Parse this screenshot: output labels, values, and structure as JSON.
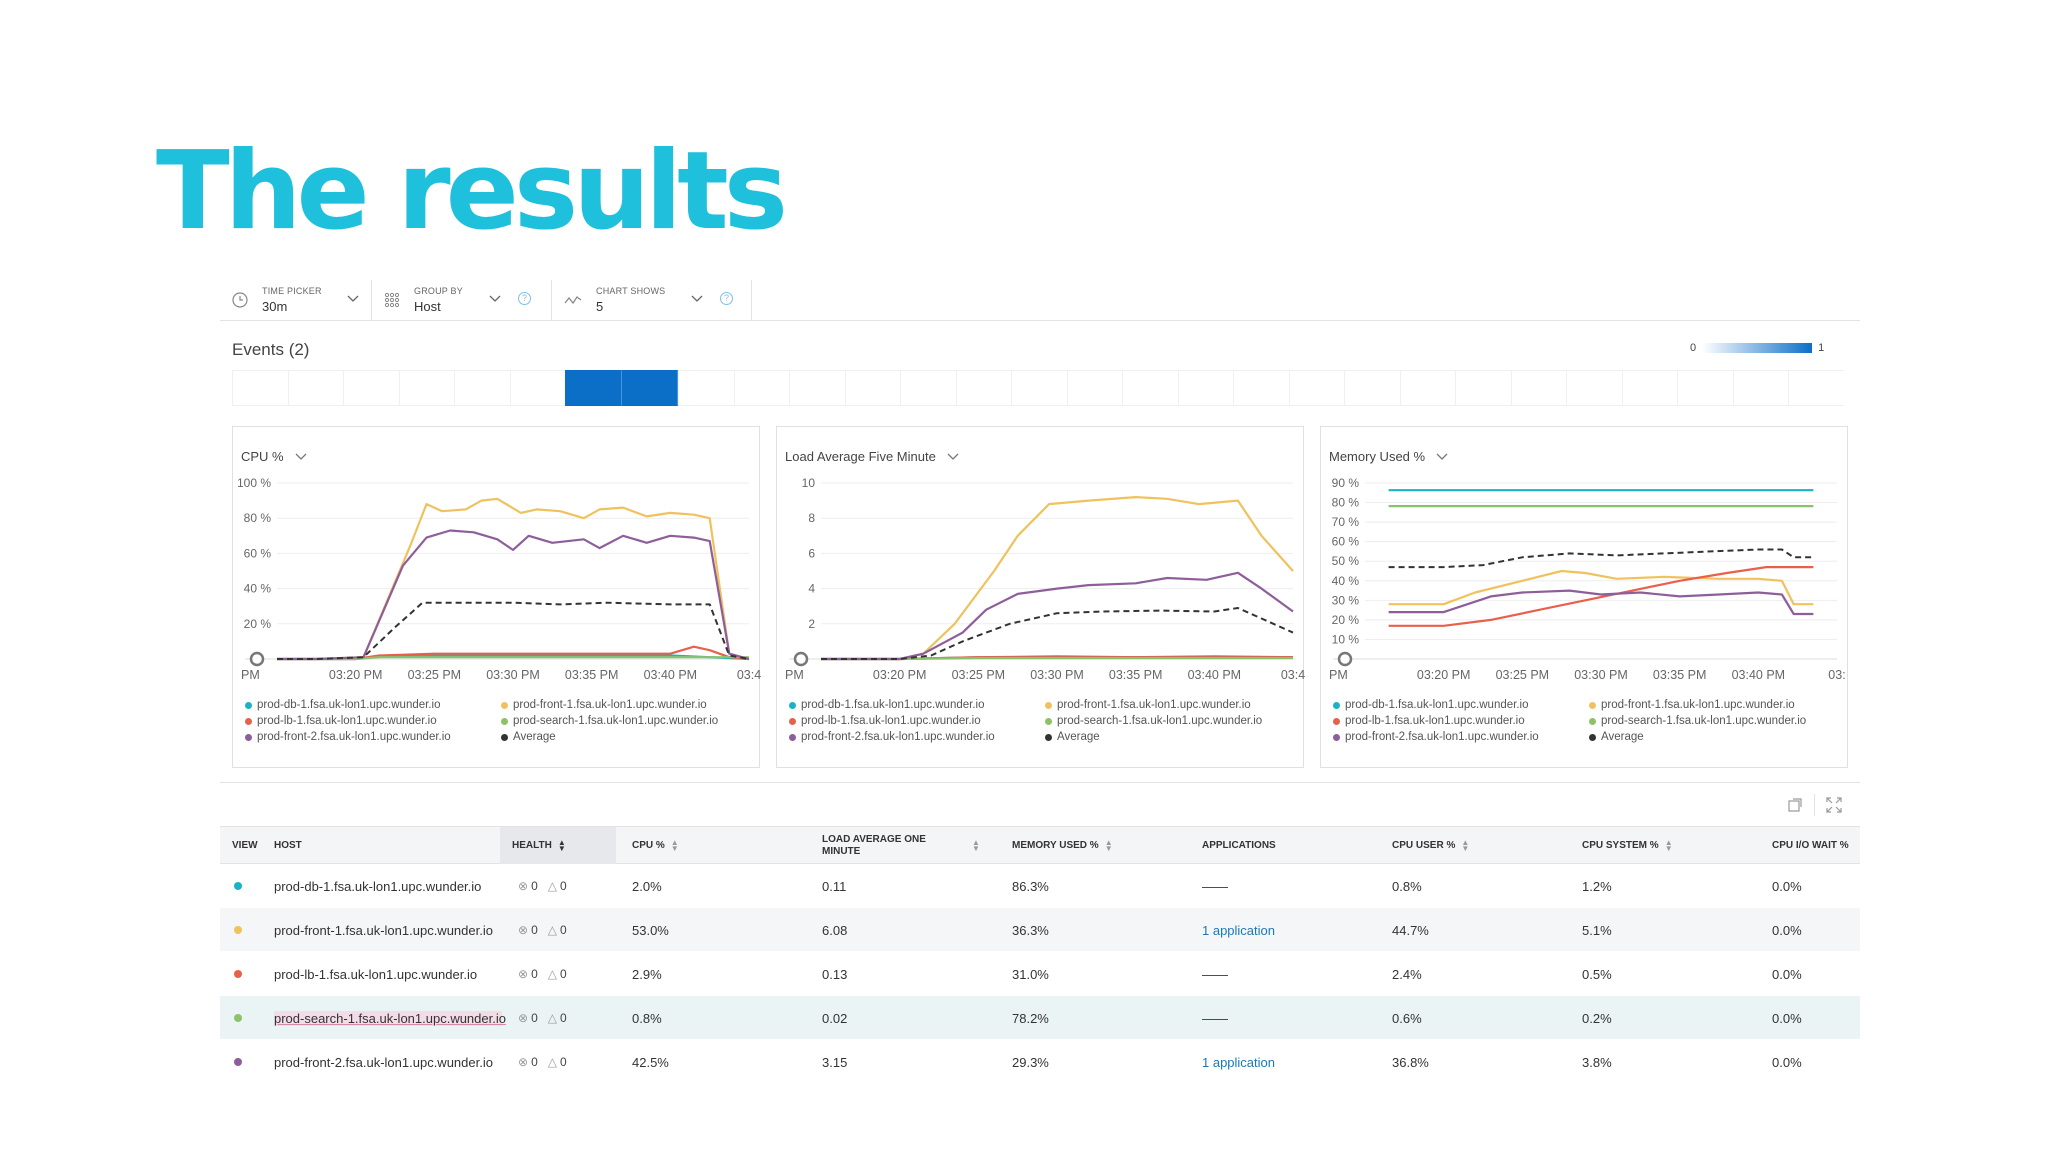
{
  "slide_title": "The results",
  "toolbar": {
    "time_picker": {
      "label": "TIME PICKER",
      "value": "30m"
    },
    "group_by": {
      "label": "GROUP BY",
      "value": "Host"
    },
    "chart_shows": {
      "label": "CHART SHOWS",
      "value": "5"
    }
  },
  "events": {
    "title": "Events (2)",
    "scale_min": "0",
    "scale_max": "1",
    "cells": [
      0,
      0,
      0,
      0,
      0,
      0,
      1,
      1,
      0,
      0,
      0,
      0,
      0,
      0,
      0,
      0,
      0,
      0,
      0,
      0,
      0,
      0,
      0,
      0,
      0,
      0,
      0,
      0,
      0
    ]
  },
  "legend": {
    "items": [
      {
        "name": "prod-db-1.fsa.uk-lon1.upc.wunder.io",
        "color": "#1ab3c4"
      },
      {
        "name": "prod-front-1.fsa.uk-lon1.upc.wunder.io",
        "color": "#efc25e"
      },
      {
        "name": "prod-lb-1.fsa.uk-lon1.upc.wunder.io",
        "color": "#e8604c"
      },
      {
        "name": "prod-search-1.fsa.uk-lon1.upc.wunder.io",
        "color": "#8cc26a"
      },
      {
        "name": "prod-front-2.fsa.uk-lon1.upc.wunder.io",
        "color": "#8e5e9b"
      },
      {
        "name": "Average",
        "color": "#333333"
      }
    ]
  },
  "chart_data": [
    {
      "type": "line",
      "title": "CPU %",
      "x": [
        "PM",
        "03:20 PM",
        "03:25 PM",
        "03:30 PM",
        "03:35 PM",
        "03:40 PM",
        "03:4"
      ],
      "x_positions": [
        0,
        1,
        2,
        3,
        4,
        5,
        6
      ],
      "ylim": [
        0,
        100
      ],
      "yticks": [
        20,
        40,
        60,
        80,
        100
      ],
      "ytick_labels": [
        "20 %",
        "40 %",
        "60 %",
        "80 %",
        "100 %"
      ],
      "series": [
        {
          "name": "prod-db-1",
          "color": "#1ab3c4",
          "dashed": false,
          "points": [
            [
              0,
              0
            ],
            [
              1,
              0
            ],
            [
              1.2,
              1
            ],
            [
              2,
              2
            ],
            [
              3,
              2
            ],
            [
              4,
              2
            ],
            [
              5,
              2
            ],
            [
              5.5,
              1
            ],
            [
              6,
              0
            ]
          ]
        },
        {
          "name": "prod-front-1",
          "color": "#efc25e",
          "dashed": false,
          "points": [
            [
              0,
              0
            ],
            [
              0.5,
              0
            ],
            [
              1.1,
              1
            ],
            [
              1.7,
              65
            ],
            [
              1.9,
              88
            ],
            [
              2.1,
              84
            ],
            [
              2.4,
              85
            ],
            [
              2.6,
              90
            ],
            [
              2.8,
              91
            ],
            [
              3.1,
              83
            ],
            [
              3.3,
              85
            ],
            [
              3.6,
              84
            ],
            [
              3.9,
              80
            ],
            [
              4.1,
              85
            ],
            [
              4.4,
              86
            ],
            [
              4.7,
              81
            ],
            [
              5,
              83
            ],
            [
              5.3,
              82
            ],
            [
              5.5,
              80
            ],
            [
              5.75,
              3
            ],
            [
              6,
              0
            ]
          ]
        },
        {
          "name": "prod-lb-1",
          "color": "#e8604c",
          "dashed": false,
          "points": [
            [
              0,
              0
            ],
            [
              1,
              0
            ],
            [
              1.3,
              2
            ],
            [
              2,
              3
            ],
            [
              3,
              3
            ],
            [
              4,
              3
            ],
            [
              5,
              3
            ],
            [
              5.3,
              7
            ],
            [
              5.5,
              5
            ],
            [
              5.75,
              1
            ],
            [
              6,
              0
            ]
          ]
        },
        {
          "name": "prod-search-1",
          "color": "#8cc26a",
          "dashed": false,
          "points": [
            [
              0,
              0
            ],
            [
              1,
              0
            ],
            [
              1.3,
              1
            ],
            [
              6,
              1
            ]
          ]
        },
        {
          "name": "prod-front-2",
          "color": "#8e5e9b",
          "dashed": false,
          "points": [
            [
              0,
              0
            ],
            [
              0.5,
              0
            ],
            [
              1.1,
              1
            ],
            [
              1.6,
              53
            ],
            [
              1.9,
              69
            ],
            [
              2.2,
              73
            ],
            [
              2.5,
              72
            ],
            [
              2.8,
              68
            ],
            [
              3.0,
              62
            ],
            [
              3.2,
              70
            ],
            [
              3.5,
              66
            ],
            [
              3.9,
              68
            ],
            [
              4.1,
              63
            ],
            [
              4.4,
              70
            ],
            [
              4.7,
              66
            ],
            [
              5,
              70
            ],
            [
              5.3,
              69
            ],
            [
              5.5,
              67
            ],
            [
              5.75,
              3
            ],
            [
              6,
              0
            ]
          ]
        },
        {
          "name": "Average",
          "color": "#333333",
          "dashed": true,
          "points": [
            [
              0,
              0
            ],
            [
              0.5,
              0
            ],
            [
              1.1,
              1
            ],
            [
              1.5,
              18
            ],
            [
              1.85,
              32
            ],
            [
              2.2,
              32
            ],
            [
              3,
              32
            ],
            [
              3.6,
              31
            ],
            [
              4.2,
              32
            ],
            [
              5,
              31
            ],
            [
              5.5,
              31
            ],
            [
              5.75,
              2
            ],
            [
              6,
              0
            ]
          ]
        }
      ]
    },
    {
      "type": "line",
      "title": "Load Average Five Minute",
      "x": [
        "PM",
        "03:20 PM",
        "03:25 PM",
        "03:30 PM",
        "03:35 PM",
        "03:40 PM",
        "03:4"
      ],
      "x_positions": [
        0,
        1,
        2,
        3,
        4,
        5,
        6
      ],
      "ylim": [
        0,
        10
      ],
      "yticks": [
        2,
        4,
        6,
        8,
        10
      ],
      "ytick_labels": [
        "2",
        "4",
        "6",
        "8",
        "10"
      ],
      "series": [
        {
          "name": "prod-db-1",
          "color": "#1ab3c4",
          "dashed": false,
          "points": [
            [
              0,
              0
            ],
            [
              1,
              0
            ],
            [
              1.5,
              0.05
            ],
            [
              2,
              0.1
            ],
            [
              3,
              0.15
            ],
            [
              4,
              0.1
            ],
            [
              5,
              0.15
            ],
            [
              6,
              0.1
            ]
          ]
        },
        {
          "name": "prod-front-1",
          "color": "#efc25e",
          "dashed": false,
          "points": [
            [
              0,
              0
            ],
            [
              1,
              0
            ],
            [
              1.3,
              0.3
            ],
            [
              1.7,
              2
            ],
            [
              2.2,
              5
            ],
            [
              2.5,
              7
            ],
            [
              2.9,
              8.8
            ],
            [
              3.4,
              9
            ],
            [
              4,
              9.2
            ],
            [
              4.4,
              9.1
            ],
            [
              4.8,
              8.8
            ],
            [
              5.3,
              9
            ],
            [
              5.6,
              7
            ],
            [
              6,
              5
            ]
          ]
        },
        {
          "name": "prod-lb-1",
          "color": "#e8604c",
          "dashed": false,
          "points": [
            [
              0,
              0
            ],
            [
              1,
              0
            ],
            [
              2,
              0.1
            ],
            [
              6,
              0.1
            ]
          ]
        },
        {
          "name": "prod-search-1",
          "color": "#8cc26a",
          "dashed": false,
          "points": [
            [
              0,
              0
            ],
            [
              1,
              0
            ],
            [
              2,
              0.05
            ],
            [
              6,
              0.05
            ]
          ]
        },
        {
          "name": "prod-front-2",
          "color": "#8e5e9b",
          "dashed": false,
          "points": [
            [
              0,
              0
            ],
            [
              1,
              0
            ],
            [
              1.3,
              0.3
            ],
            [
              1.8,
              1.5
            ],
            [
              2.1,
              2.8
            ],
            [
              2.5,
              3.7
            ],
            [
              3,
              4
            ],
            [
              3.4,
              4.2
            ],
            [
              4,
              4.3
            ],
            [
              4.4,
              4.6
            ],
            [
              4.9,
              4.5
            ],
            [
              5.3,
              4.9
            ],
            [
              5.6,
              4
            ],
            [
              6,
              2.7
            ]
          ]
        },
        {
          "name": "Average",
          "color": "#333333",
          "dashed": true,
          "points": [
            [
              0,
              0
            ],
            [
              1,
              0
            ],
            [
              1.4,
              0.2
            ],
            [
              1.8,
              1
            ],
            [
              2.4,
              2
            ],
            [
              3,
              2.6
            ],
            [
              3.6,
              2.7
            ],
            [
              4.3,
              2.75
            ],
            [
              5,
              2.7
            ],
            [
              5.3,
              2.9
            ],
            [
              5.6,
              2.3
            ],
            [
              6,
              1.5
            ]
          ]
        }
      ]
    },
    {
      "type": "line",
      "title": "Memory Used %",
      "x": [
        "PM",
        "03:20 PM",
        "03:25 PM",
        "03:30 PM",
        "03:35 PM",
        "03:40 PM",
        "03:"
      ],
      "x_positions": [
        0,
        1,
        2,
        3,
        4,
        5,
        6
      ],
      "ylim": [
        0,
        90
      ],
      "yticks": [
        10,
        20,
        30,
        40,
        50,
        60,
        70,
        80,
        90
      ],
      "ytick_labels": [
        "10 %",
        "20 %",
        "30 %",
        "40 %",
        "50 %",
        "60 %",
        "70 %",
        "80 %",
        "90 %"
      ],
      "series": [
        {
          "name": "prod-db-1",
          "color": "#1ab3c4",
          "dashed": false,
          "points": [
            [
              0.3,
              86.3
            ],
            [
              5.7,
              86.3
            ]
          ]
        },
        {
          "name": "prod-front-1",
          "color": "#efc25e",
          "dashed": false,
          "points": [
            [
              0.3,
              28
            ],
            [
              1,
              28
            ],
            [
              1.4,
              34
            ],
            [
              2,
              40
            ],
            [
              2.5,
              45
            ],
            [
              2.8,
              44
            ],
            [
              3.2,
              41
            ],
            [
              3.8,
              42
            ],
            [
              4.5,
              41
            ],
            [
              5,
              41
            ],
            [
              5.3,
              40
            ],
            [
              5.45,
              28
            ],
            [
              5.7,
              28
            ]
          ]
        },
        {
          "name": "prod-lb-1",
          "color": "#e8604c",
          "dashed": false,
          "points": [
            [
              0.3,
              17
            ],
            [
              1,
              17
            ],
            [
              1.6,
              20
            ],
            [
              2.2,
              25
            ],
            [
              2.8,
              30
            ],
            [
              3.4,
              35
            ],
            [
              4,
              40
            ],
            [
              4.6,
              44
            ],
            [
              5.1,
              47
            ],
            [
              5.7,
              47
            ]
          ]
        },
        {
          "name": "prod-search-1",
          "color": "#8cc26a",
          "dashed": false,
          "points": [
            [
              0.3,
              78.2
            ],
            [
              5.7,
              78.2
            ]
          ]
        },
        {
          "name": "prod-front-2",
          "color": "#8e5e9b",
          "dashed": false,
          "points": [
            [
              0.3,
              24
            ],
            [
              1,
              24
            ],
            [
              1.6,
              32
            ],
            [
              2,
              34
            ],
            [
              2.6,
              35
            ],
            [
              3,
              33
            ],
            [
              3.5,
              34
            ],
            [
              4,
              32
            ],
            [
              4.5,
              33
            ],
            [
              5,
              34
            ],
            [
              5.3,
              33
            ],
            [
              5.45,
              23
            ],
            [
              5.7,
              23
            ]
          ]
        },
        {
          "name": "Average",
          "color": "#333333",
          "dashed": true,
          "points": [
            [
              0.3,
              47
            ],
            [
              1,
              47
            ],
            [
              1.5,
              48
            ],
            [
              2,
              52
            ],
            [
              2.6,
              54
            ],
            [
              3.2,
              53
            ],
            [
              3.8,
              54
            ],
            [
              4.4,
              55
            ],
            [
              5,
              56
            ],
            [
              5.3,
              56
            ],
            [
              5.45,
              52
            ],
            [
              5.7,
              52
            ]
          ]
        }
      ]
    }
  ],
  "table": {
    "columns": {
      "view": "VIEW",
      "host": "HOST",
      "health": "HEALTH",
      "cpu": "CPU %",
      "load": "LOAD AVERAGE ONE MINUTE",
      "memory": "MEMORY USED %",
      "applications": "APPLICATIONS",
      "cpu_user": "CPU USER %",
      "cpu_system": "CPU SYSTEM %",
      "cpu_io": "CPU I/O WAIT %"
    },
    "rows": [
      {
        "color": "#1ab3c4",
        "host": "prod-db-1.fsa.uk-lon1.upc.wunder.io",
        "critical": "0",
        "warning": "0",
        "cpu": "2.0%",
        "load": "0.11",
        "memory": "86.3%",
        "applications": "——",
        "cpu_user": "0.8%",
        "cpu_system": "1.2%",
        "cpu_io": "0.0%"
      },
      {
        "color": "#efc25e",
        "host": "prod-front-1.fsa.uk-lon1.upc.wunder.io",
        "critical": "0",
        "warning": "0",
        "cpu": "53.0%",
        "load": "6.08",
        "memory": "36.3%",
        "applications": "1 application",
        "cpu_user": "44.7%",
        "cpu_system": "5.1%",
        "cpu_io": "0.0%"
      },
      {
        "color": "#e8604c",
        "host": "prod-lb-1.fsa.uk-lon1.upc.wunder.io",
        "critical": "0",
        "warning": "0",
        "cpu": "2.9%",
        "load": "0.13",
        "memory": "31.0%",
        "applications": "——",
        "cpu_user": "2.4%",
        "cpu_system": "0.5%",
        "cpu_io": "0.0%"
      },
      {
        "color": "#8cc26a",
        "host": "prod-search-1.fsa.uk-lon1.upc.wunder.io",
        "critical": "0",
        "warning": "0",
        "cpu": "0.8%",
        "load": "0.02",
        "memory": "78.2%",
        "applications": "——",
        "cpu_user": "0.6%",
        "cpu_system": "0.2%",
        "cpu_io": "0.0%"
      },
      {
        "color": "#8e5e9b",
        "host": "prod-front-2.fsa.uk-lon1.upc.wunder.io",
        "critical": "0",
        "warning": "0",
        "cpu": "42.5%",
        "load": "3.15",
        "memory": "29.3%",
        "applications": "1 application",
        "cpu_user": "36.8%",
        "cpu_system": "3.8%",
        "cpu_io": "0.0%"
      }
    ]
  }
}
